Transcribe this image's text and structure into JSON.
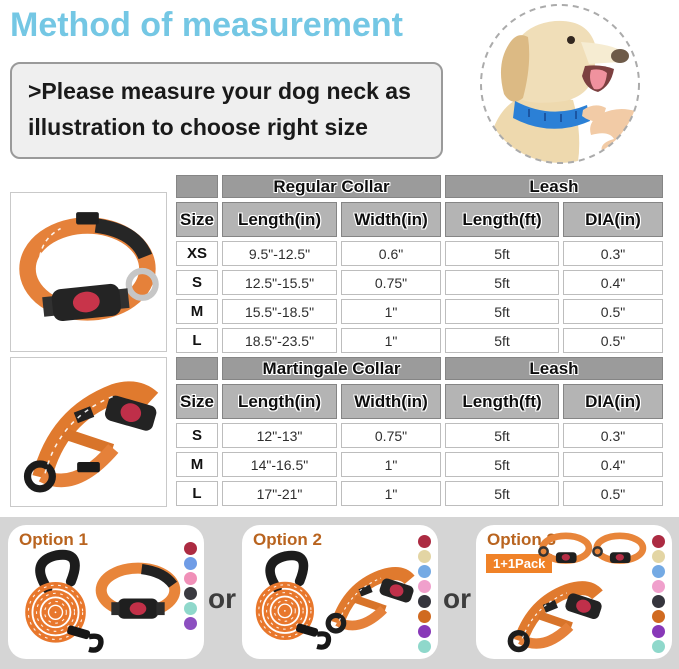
{
  "page": {
    "title": "Method of measurement",
    "instruction": ">Please measure your dog neck as illustration to choose right size"
  },
  "colors": {
    "title_accent": "#74c7e4",
    "group_header_bg": "#9b9b9b",
    "column_header_bg": "#b4b4b4",
    "strip_bg": "#d5d5d5",
    "option_label": "#b9641f",
    "pack_badge_bg": "#f08228",
    "collar_orange": "#e8772c",
    "measuring_collar_blue": "#2b80d6"
  },
  "tables": [
    {
      "group_headers": [
        "Regular Collar",
        "Leash"
      ],
      "columns": [
        "Size",
        "Length(in)",
        "Width(in)",
        "Length(ft)",
        "DIA(in)"
      ],
      "rows": [
        [
          "XS",
          "9.5\"-12.5\"",
          "0.6\"",
          "5ft",
          "0.3\""
        ],
        [
          "S",
          "12.5\"-15.5\"",
          "0.75\"",
          "5ft",
          "0.4\""
        ],
        [
          "M",
          "15.5\"-18.5\"",
          "1\"",
          "5ft",
          "0.5\""
        ],
        [
          "L",
          "18.5\"-23.5\"",
          "1\"",
          "5ft",
          "0.5\""
        ]
      ]
    },
    {
      "group_headers": [
        "Martingale Collar",
        "Leash"
      ],
      "columns": [
        "Size",
        "Length(in)",
        "Width(in)",
        "Length(ft)",
        "DIA(in)"
      ],
      "rows": [
        [
          "S",
          "12\"-13\"",
          "0.75\"",
          "5ft",
          "0.3\""
        ],
        [
          "M",
          "14\"-16.5\"",
          "1\"",
          "5ft",
          "0.4\""
        ],
        [
          "L",
          "17\"-21\"",
          "1\"",
          "5ft",
          "0.5\""
        ]
      ]
    }
  ],
  "options": [
    {
      "label": "Option 1",
      "swatches": [
        {
          "name": "dark-red",
          "hex": "#ac2b42"
        },
        {
          "name": "blue",
          "hex": "#6f9ce6"
        },
        {
          "name": "pink",
          "hex": "#f090b8"
        },
        {
          "name": "black",
          "hex": "#3a3a40"
        },
        {
          "name": "aqua",
          "hex": "#8fd8cb"
        },
        {
          "name": "purple",
          "hex": "#8c4fc0"
        }
      ]
    },
    {
      "label": "Option 2",
      "swatches": [
        {
          "name": "dark-red",
          "hex": "#ac2b42"
        },
        {
          "name": "beige",
          "hex": "#e3d5a4"
        },
        {
          "name": "blue",
          "hex": "#74aae4"
        },
        {
          "name": "pink",
          "hex": "#f0a0cc"
        },
        {
          "name": "black",
          "hex": "#35353d"
        },
        {
          "name": "orange",
          "hex": "#d06a20"
        },
        {
          "name": "purple",
          "hex": "#8838b8"
        },
        {
          "name": "aqua",
          "hex": "#8fd8cb"
        }
      ]
    },
    {
      "label": "Option 3",
      "badge": "1+1Pack",
      "swatches": [
        {
          "name": "dark-red",
          "hex": "#ac2b42"
        },
        {
          "name": "beige",
          "hex": "#e3d5a4"
        },
        {
          "name": "blue",
          "hex": "#74aae4"
        },
        {
          "name": "pink",
          "hex": "#f0a0cc"
        },
        {
          "name": "black",
          "hex": "#35353d"
        },
        {
          "name": "orange",
          "hex": "#d06a20"
        },
        {
          "name": "purple",
          "hex": "#8838b8"
        },
        {
          "name": "aqua",
          "hex": "#8fd8cb"
        }
      ]
    }
  ],
  "separators": [
    "or",
    "or"
  ]
}
